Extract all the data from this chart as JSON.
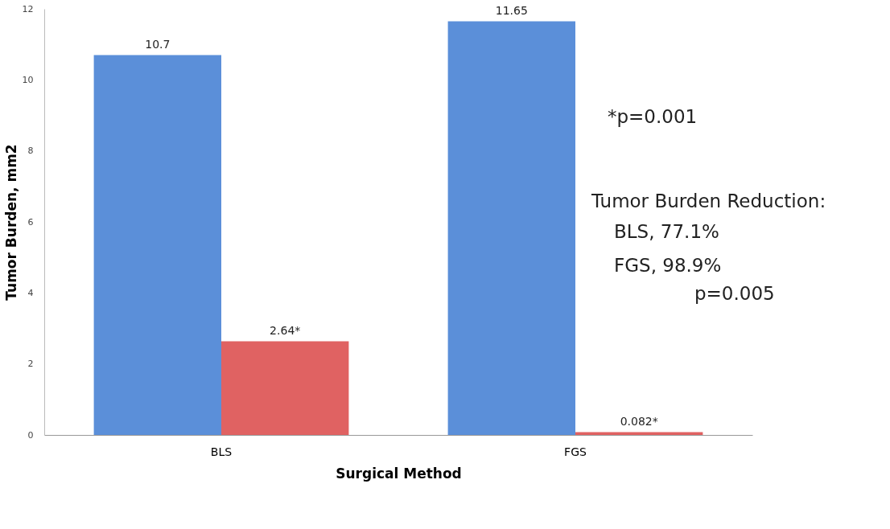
{
  "chart_data": {
    "type": "bar",
    "xlabel": "Surgical Method",
    "ylabel": "Tumor Burden, mm2",
    "categories": [
      "BLS",
      "FGS"
    ],
    "series": [
      {
        "color": "#5b8fd9",
        "values": [
          10.7,
          11.65
        ],
        "value_labels": [
          "10.7",
          "11.65"
        ]
      },
      {
        "color": "#e06262",
        "values": [
          2.64,
          0.082
        ],
        "value_labels": [
          "2.64*",
          "0.082*"
        ]
      }
    ],
    "ylim": [
      0,
      12
    ],
    "yticks": [
      0,
      2,
      4,
      6,
      8,
      10,
      12
    ],
    "grid": false,
    "legend": false,
    "annotations": [
      "*p=0.001",
      "Tumor Burden Reduction:",
      "BLS, 77.1%",
      "FGS, 98.9%",
      "p=0.005"
    ]
  }
}
